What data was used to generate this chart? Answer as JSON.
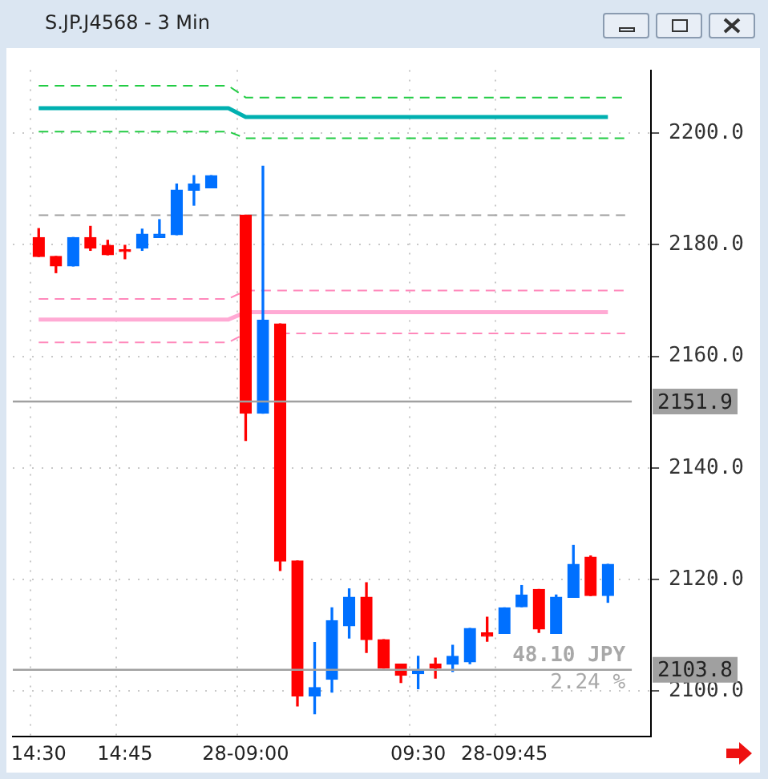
{
  "chart_data": {
    "type": "candlestick",
    "title": "S.JP.J4568 - 3 Min",
    "categories": [
      null,
      "14:30",
      null,
      null,
      null,
      null,
      "14:45",
      null,
      null,
      null,
      null,
      null,
      null,
      "28-09:00",
      null,
      null,
      null,
      null,
      null,
      null,
      null,
      null,
      null,
      "09:30",
      null,
      null,
      null,
      null,
      "28-09:45",
      null,
      null,
      null,
      null,
      null,
      null,
      null,
      null
    ],
    "ohlc": [
      null,
      [
        2181.3,
        2182.9,
        2177.9,
        2177.9
      ],
      [
        2177.9,
        2177.9,
        2175.0,
        2176.2
      ],
      [
        2176.2,
        2181.3,
        2176.2,
        2181.3
      ],
      [
        2181.3,
        2183.3,
        2179.0,
        2179.4
      ],
      [
        2179.9,
        2180.8,
        2178.2,
        2178.2
      ],
      [
        2178.8,
        2179.9,
        2177.5,
        2178.8
      ],
      [
        2179.4,
        2182.8,
        2179.0,
        2181.9
      ],
      [
        2181.3,
        2184.5,
        2181.3,
        2181.9
      ],
      [
        2181.8,
        2190.9,
        2181.8,
        2189.8
      ],
      [
        2189.8,
        2192.4,
        2187.1,
        2190.9
      ],
      [
        2190.2,
        2192.4,
        2190.2,
        2192.4
      ],
      null,
      [
        2185.3,
        2185.3,
        2144.9,
        2149.8
      ],
      [
        2149.8,
        2194.1,
        2149.8,
        2166.5
      ],
      [
        2165.8,
        2165.8,
        2121.6,
        2123.3
      ],
      [
        2123.3,
        2123.3,
        2097.3,
        2099.1
      ],
      [
        2099.1,
        2108.7,
        2095.9,
        2100.6
      ],
      [
        2102.1,
        2114.9,
        2099.8,
        2112.6
      ],
      [
        2111.7,
        2118.3,
        2109.5,
        2116.8
      ],
      [
        2116.8,
        2119.4,
        2106.9,
        2109.2
      ],
      [
        2109.2,
        2109.2,
        2104.1,
        2104.1
      ],
      [
        2104.8,
        2104.8,
        2101.5,
        2102.8
      ],
      [
        2103.1,
        2106.2,
        2100.4,
        2103.7
      ],
      [
        2104.8,
        2105.9,
        2102.3,
        2104.1
      ],
      [
        2104.8,
        2108.2,
        2103.5,
        2106.2
      ],
      [
        2105.2,
        2111.2,
        2104.9,
        2111.2
      ],
      [
        2110.4,
        2113.2,
        2108.9,
        2109.8
      ],
      [
        2110.3,
        2114.9,
        2110.3,
        2114.9
      ],
      [
        2115.1,
        2118.9,
        2115.1,
        2117.2
      ],
      [
        2118.2,
        2118.2,
        2110.5,
        2111.1
      ],
      [
        2110.3,
        2117.2,
        2110.3,
        2116.8
      ],
      [
        2116.8,
        2126.1,
        2116.8,
        2122.7
      ],
      [
        2124.0,
        2124.2,
        2117.1,
        2117.1
      ],
      [
        2117.1,
        2122.7,
        2115.9,
        2122.7
      ],
      null,
      null
    ],
    "colors": [
      null,
      "#ff0000",
      "#ff0000",
      "#0070ff",
      "#ff0000",
      "#ff0000",
      "#ff0000",
      "#0070ff",
      "#0070ff",
      "#0070ff",
      "#0070ff",
      "#0070ff",
      null,
      "#ff0000",
      "#0070ff",
      "#ff0000",
      "#ff0000",
      "#0070ff",
      "#0070ff",
      "#0070ff",
      "#ff0000",
      "#ff0000",
      "#ff0000",
      "#0070ff",
      "#ff0000",
      "#0070ff",
      "#0070ff",
      "#ff0000",
      "#0070ff",
      "#0070ff",
      "#ff0000",
      "#0070ff",
      "#0070ff",
      "#ff0000",
      "#0070ff",
      null,
      null
    ],
    "series": [
      {
        "type": "line",
        "line_style": "dashed",
        "color": "#22cc44",
        "values": [
          null,
          2208.5,
          2208.5,
          2208.5,
          2208.5,
          2208.5,
          2208.5,
          2208.5,
          2208.5,
          2208.5,
          2208.5,
          2208.5,
          2208.5,
          2206.4,
          2206.4,
          2206.4,
          2206.4,
          2206.4,
          2206.4,
          2206.4,
          2206.4,
          2206.4,
          2206.4,
          2206.4,
          2206.4,
          2206.4,
          2206.4,
          2206.4,
          2206.4,
          2206.4,
          2206.4,
          2206.4,
          2206.4,
          2206.4,
          2206.4,
          2206.4,
          null
        ]
      },
      {
        "type": "line",
        "line_style": "solid",
        "color": "#00b0b0",
        "values": [
          null,
          2204.5,
          2204.5,
          2204.5,
          2204.5,
          2204.5,
          2204.5,
          2204.5,
          2204.5,
          2204.5,
          2204.5,
          2204.5,
          2204.5,
          2202.9,
          2202.9,
          2202.9,
          2202.9,
          2202.9,
          2202.9,
          2202.9,
          2202.9,
          2202.9,
          2202.9,
          2202.9,
          2202.9,
          2202.9,
          2202.9,
          2202.9,
          2202.9,
          2202.9,
          2202.9,
          2202.9,
          2202.9,
          2202.9,
          2202.9,
          null,
          null
        ]
      },
      {
        "type": "line",
        "line_style": "dashed",
        "color": "#22cc44",
        "values": [
          null,
          2200.3,
          2200.3,
          2200.3,
          2200.3,
          2200.3,
          2200.3,
          2200.3,
          2200.3,
          2200.3,
          2200.3,
          2200.3,
          2200.3,
          2199.1,
          2199.1,
          2199.1,
          2199.1,
          2199.1,
          2199.1,
          2199.1,
          2199.1,
          2199.1,
          2199.1,
          2199.1,
          2199.1,
          2199.1,
          2199.1,
          2199.1,
          2199.1,
          2199.1,
          2199.1,
          2199.1,
          2199.1,
          2199.1,
          2199.1,
          2199.1,
          null
        ]
      },
      {
        "type": "line",
        "line_style": "dashed",
        "color": "#a0a0a0",
        "values": [
          null,
          2185.3,
          2185.3,
          2185.3,
          2185.3,
          2185.3,
          2185.3,
          2185.3,
          2185.3,
          2185.3,
          2185.3,
          2185.3,
          2185.3,
          2185.3,
          2185.3,
          2185.3,
          2185.3,
          2185.3,
          2185.3,
          2185.3,
          2185.3,
          2185.3,
          2185.3,
          2185.3,
          2185.3,
          2185.3,
          2185.3,
          2185.3,
          2185.3,
          2185.3,
          2185.3,
          2185.3,
          2185.3,
          2185.3,
          2185.3,
          2185.3,
          null
        ]
      },
      {
        "type": "line",
        "line_style": "dashed",
        "color": "#ff88bb",
        "values": [
          null,
          2170.3,
          2170.3,
          2170.3,
          2170.3,
          2170.3,
          2170.3,
          2170.3,
          2170.3,
          2170.3,
          2170.3,
          2170.3,
          2170.3,
          2171.8,
          2171.8,
          2171.8,
          2171.8,
          2171.8,
          2171.8,
          2171.8,
          2171.8,
          2171.8,
          2171.8,
          2171.8,
          2171.8,
          2171.8,
          2171.8,
          2171.8,
          2171.8,
          2171.8,
          2171.8,
          2171.8,
          2171.8,
          2171.8,
          2171.8,
          2171.8,
          null
        ]
      },
      {
        "type": "line",
        "line_style": "solid",
        "color": "#ffaad4",
        "values": [
          null,
          2166.6,
          2166.6,
          2166.6,
          2166.6,
          2166.6,
          2166.6,
          2166.6,
          2166.6,
          2166.6,
          2166.6,
          2166.6,
          2166.6,
          2167.9,
          2167.9,
          2167.9,
          2167.9,
          2167.9,
          2167.9,
          2167.9,
          2167.9,
          2167.9,
          2167.9,
          2167.9,
          2167.9,
          2167.9,
          2167.9,
          2167.9,
          2167.9,
          2167.9,
          2167.9,
          2167.9,
          2167.9,
          2167.9,
          2167.9,
          null,
          null
        ]
      },
      {
        "type": "line",
        "line_style": "dashed",
        "color": "#ff88bb",
        "values": [
          null,
          2162.5,
          2162.5,
          2162.5,
          2162.5,
          2162.5,
          2162.5,
          2162.5,
          2162.5,
          2162.5,
          2162.5,
          2162.5,
          2162.5,
          2164.1,
          null,
          2164.1,
          2164.1,
          2164.1,
          2164.1,
          2164.1,
          2164.1,
          2164.1,
          2164.1,
          2164.1,
          2164.1,
          2164.1,
          2164.1,
          2164.1,
          2164.1,
          2164.1,
          2164.1,
          2164.1,
          2164.1,
          2164.1,
          2164.1,
          2164.1,
          null
        ]
      }
    ],
    "marker": "none",
    "ylim": [
      2091.8,
      2211.3
    ],
    "yticks": [
      {
        "value": 2100,
        "label": "2100.0"
      },
      {
        "value": 2120,
        "label": "2120.0"
      },
      {
        "value": 2140,
        "label": "2140.0"
      },
      {
        "value": 2160,
        "label": "2160.0"
      },
      {
        "value": 2180,
        "label": "2180.0"
      },
      {
        "value": 2200,
        "label": "2200.0"
      }
    ],
    "grid": true,
    "ref_lines": [
      {
        "axis": "y",
        "value": 2151.9,
        "label": "2151.9",
        "color": "#a0a0a0"
      },
      {
        "axis": "y",
        "value": 2103.8,
        "label": "2103.8",
        "color": "#a0a0a0"
      }
    ],
    "annotations": [
      "48.10 JPY",
      "2.24 %"
    ]
  }
}
